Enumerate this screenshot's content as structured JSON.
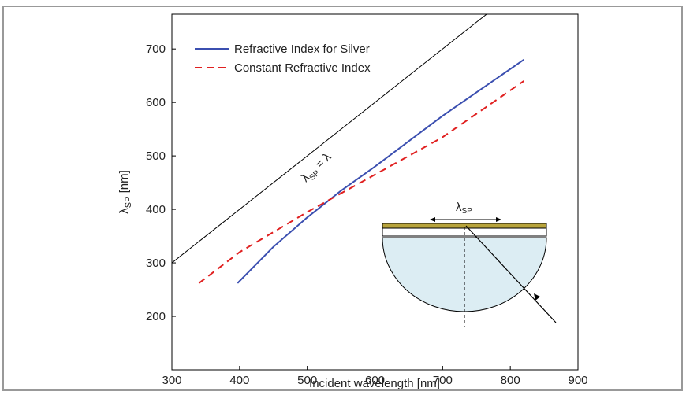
{
  "chart_data": {
    "type": "line",
    "x_label": "Incident wavelength [nm]",
    "y_label": [
      "λ",
      "SP",
      " [nm]"
    ],
    "xlim": [
      300,
      900
    ],
    "xticks": [
      300,
      400,
      500,
      600,
      700,
      800,
      900
    ],
    "ylim": [
      100,
      765
    ],
    "yticks": [
      200,
      300,
      400,
      500,
      600,
      700
    ],
    "series": [
      {
        "name": "Refractive Index for Silver",
        "color": "#3b4fb0",
        "dash": false,
        "x": [
          397,
          450,
          500,
          550,
          600,
          700,
          820
        ],
        "values": [
          262,
          330,
          385,
          435,
          480,
          575,
          680
        ]
      },
      {
        "name": "Constant Refractive Index",
        "color": "#e02020",
        "dash": true,
        "x": [
          340,
          400,
          500,
          600,
          700,
          820
        ],
        "values": [
          262,
          320,
          395,
          465,
          535,
          640
        ]
      }
    ],
    "reference_line": {
      "x": [
        300,
        765
      ],
      "values": [
        300,
        765
      ],
      "color": "#000000",
      "label": [
        "λ",
        "SP",
        " = λ"
      ]
    },
    "inset_label": [
      "λ",
      "SP"
    ]
  }
}
